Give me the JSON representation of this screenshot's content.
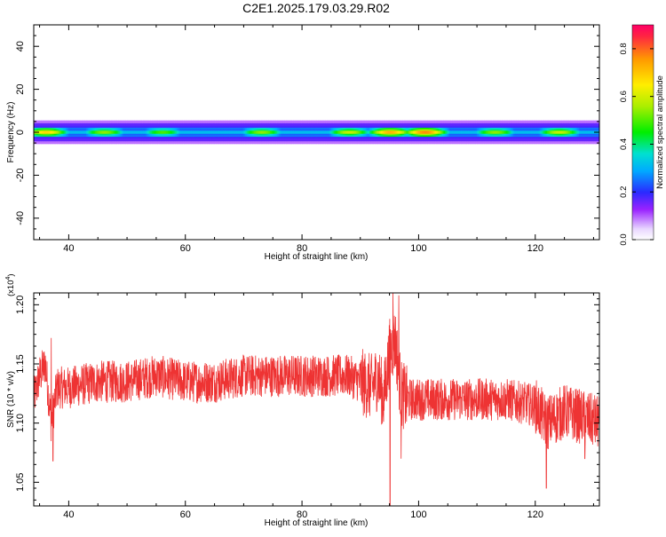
{
  "chart_data": [
    {
      "type": "heatmap",
      "title": "C2E1.2025.179.03.29.R02",
      "xlabel": "Height of straight line (km)",
      "ylabel": "Frequency (Hz)",
      "xlim": [
        34,
        131
      ],
      "ylim": [
        -50,
        50
      ],
      "xticks": [
        40,
        60,
        80,
        100,
        120
      ],
      "yticks": [
        40,
        20,
        0,
        -20,
        -40
      ],
      "colorbar": {
        "label": "Normalized spectral amplitude",
        "range": [
          0,
          0.9
        ],
        "ticks": [
          "0.0",
          "0.2",
          "0.4",
          "0.6",
          "0.8"
        ]
      },
      "band": {
        "center_frequency_hz": 0,
        "halfwidth_hz": 3,
        "peak_heights_km": [
          36,
          46,
          56,
          73,
          88,
          95,
          101,
          113,
          124
        ],
        "peak_amplitudes": [
          0.75,
          0.6,
          0.55,
          0.6,
          0.65,
          0.8,
          0.85,
          0.6,
          0.65
        ]
      }
    },
    {
      "type": "line",
      "xlabel": "Height of straight line (km)",
      "ylabel": "SNR (10 * v/v)",
      "y_multiplier": "(x10",
      "y_multiplier_exp": "4",
      "y_multiplier_close": ")",
      "xlim": [
        34,
        131
      ],
      "ylim": [
        1.03,
        1.21
      ],
      "xticks": [
        40,
        60,
        80,
        100,
        120
      ],
      "yticks": [
        "1.20",
        "1.15",
        "1.10",
        "1.05"
      ],
      "series": [
        {
          "color": "#ee3333",
          "x": [
            34,
            35,
            36,
            37,
            38,
            40,
            45,
            50,
            55,
            60,
            65,
            70,
            75,
            80,
            85,
            88,
            90,
            92,
            93,
            94,
            95,
            96,
            97,
            98,
            100,
            105,
            110,
            115,
            120,
            122,
            125,
            128,
            131
          ],
          "y": [
            1.12,
            1.14,
            1.15,
            1.1,
            1.13,
            1.13,
            1.135,
            1.135,
            1.14,
            1.135,
            1.135,
            1.14,
            1.14,
            1.14,
            1.14,
            1.14,
            1.135,
            1.13,
            1.14,
            1.12,
            1.16,
            1.17,
            1.125,
            1.12,
            1.12,
            1.12,
            1.12,
            1.12,
            1.115,
            1.1,
            1.11,
            1.105,
            1.1
          ],
          "noise_amplitude": 0.018,
          "spikes": [
            {
              "x": 37.3,
              "y": 1.068
            },
            {
              "x": 37.0,
              "y": 1.172
            },
            {
              "x": 95.1,
              "y": 1.03
            },
            {
              "x": 95.6,
              "y": 1.212
            },
            {
              "x": 96.6,
              "y": 1.208
            },
            {
              "x": 97.0,
              "y": 1.07
            },
            {
              "x": 121.9,
              "y": 1.045
            },
            {
              "x": 128.5,
              "y": 1.07
            }
          ]
        }
      ]
    }
  ]
}
